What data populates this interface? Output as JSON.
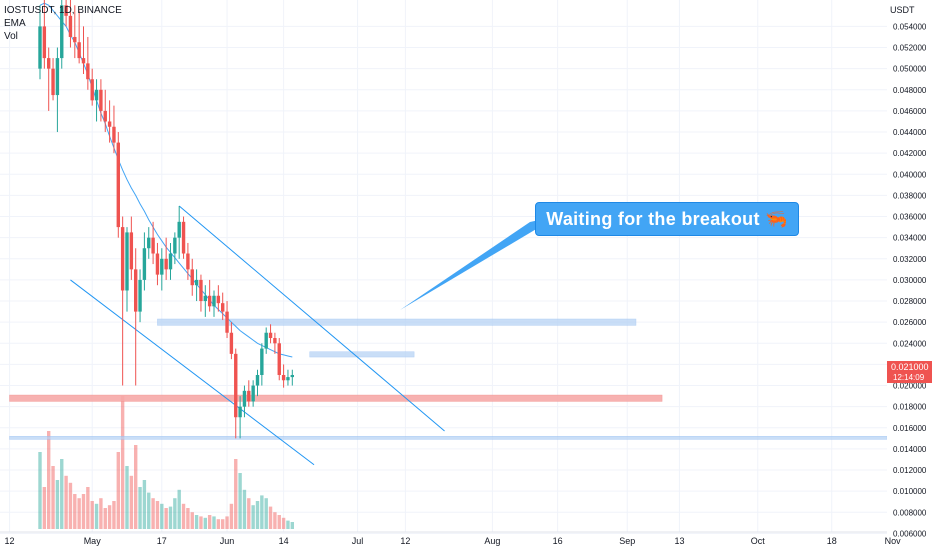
{
  "header": {
    "symbol_line": "IOSTUSDT, 1D, BINANCE",
    "ema_label": "EMA",
    "vol_label": "Vol"
  },
  "axis": {
    "currency": "USDT",
    "last_price": "0.021000",
    "countdown": "12:14:09"
  },
  "callout": {
    "text": "Waiting for the breakout",
    "emoji": "🦐"
  },
  "colors": {
    "up": "#26a69a",
    "down": "#ef5350",
    "ema": "#42a5f5",
    "trendline": "#2196f3",
    "support_zone": "#f7a9a8",
    "resistance_zone": "#b3d1f5",
    "price_badge": "#ef5350"
  },
  "chart_data": {
    "type": "candlestick",
    "title": "IOSTUSDT, 1D, BINANCE",
    "ylabel": "USDT",
    "ylim": [
      0.005,
      0.0565
    ],
    "price_ticks": [
      0.054,
      0.052,
      0.05,
      0.048,
      0.046,
      0.044,
      0.042,
      0.04,
      0.038,
      0.036,
      0.034,
      0.032,
      0.03,
      0.028,
      0.026,
      0.024,
      0.022,
      0.02,
      0.018,
      0.016,
      0.014,
      0.012,
      0.01,
      0.008,
      0.006
    ],
    "date_ticks": [
      {
        "label": "12",
        "day": -7
      },
      {
        "label": "May",
        "day": 12
      },
      {
        "label": "17",
        "day": 28
      },
      {
        "label": "Jun",
        "day": 43
      },
      {
        "label": "14",
        "day": 56
      },
      {
        "label": "Jul",
        "day": 73
      },
      {
        "label": "12",
        "day": 84
      },
      {
        "label": "Aug",
        "day": 104
      },
      {
        "label": "16",
        "day": 119
      },
      {
        "label": "Sep",
        "day": 135
      },
      {
        "label": "13",
        "day": 147
      },
      {
        "label": "Oct",
        "day": 165
      },
      {
        "label": "18",
        "day": 182
      },
      {
        "label": "Nov",
        "day": 196
      }
    ],
    "candles": [
      [
        0.05,
        0.056,
        0.049,
        0.054
      ],
      [
        0.054,
        0.0565,
        0.05,
        0.051
      ],
      [
        0.051,
        0.052,
        0.046,
        0.05
      ],
      [
        0.05,
        0.051,
        0.047,
        0.0475
      ],
      [
        0.0475,
        0.052,
        0.044,
        0.051
      ],
      [
        0.051,
        0.0565,
        0.05,
        0.056
      ],
      [
        0.056,
        0.0565,
        0.054,
        0.055
      ],
      [
        0.055,
        0.0565,
        0.052,
        0.053
      ],
      [
        0.053,
        0.056,
        0.051,
        0.0525
      ],
      [
        0.0525,
        0.0555,
        0.0505,
        0.051
      ],
      [
        0.051,
        0.054,
        0.0495,
        0.0505
      ],
      [
        0.0505,
        0.053,
        0.048,
        0.049
      ],
      [
        0.049,
        0.05,
        0.0465,
        0.047
      ],
      [
        0.047,
        0.049,
        0.045,
        0.048
      ],
      [
        0.048,
        0.049,
        0.045,
        0.046
      ],
      [
        0.046,
        0.048,
        0.044,
        0.045
      ],
      [
        0.045,
        0.047,
        0.043,
        0.0445
      ],
      [
        0.0445,
        0.0465,
        0.042,
        0.043
      ],
      [
        0.043,
        0.044,
        0.034,
        0.035
      ],
      [
        0.035,
        0.036,
        0.02,
        0.029
      ],
      [
        0.029,
        0.035,
        0.027,
        0.0345
      ],
      [
        0.0345,
        0.036,
        0.03,
        0.031
      ],
      [
        0.031,
        0.033,
        0.02,
        0.027
      ],
      [
        0.027,
        0.031,
        0.026,
        0.03
      ],
      [
        0.03,
        0.0345,
        0.029,
        0.033
      ],
      [
        0.033,
        0.035,
        0.032,
        0.034
      ],
      [
        0.034,
        0.0355,
        0.0315,
        0.0325
      ],
      [
        0.0325,
        0.0335,
        0.0295,
        0.0305
      ],
      [
        0.0305,
        0.033,
        0.029,
        0.032
      ],
      [
        0.032,
        0.034,
        0.03,
        0.031
      ],
      [
        0.031,
        0.0335,
        0.03,
        0.0325
      ],
      [
        0.0325,
        0.0345,
        0.0315,
        0.034
      ],
      [
        0.034,
        0.037,
        0.032,
        0.0355
      ],
      [
        0.0355,
        0.036,
        0.032,
        0.0325
      ],
      [
        0.0325,
        0.0335,
        0.03,
        0.031
      ],
      [
        0.031,
        0.032,
        0.0285,
        0.0295
      ],
      [
        0.0295,
        0.031,
        0.028,
        0.03
      ],
      [
        0.03,
        0.0305,
        0.027,
        0.028
      ],
      [
        0.028,
        0.0295,
        0.0265,
        0.0285
      ],
      [
        0.0285,
        0.03,
        0.027,
        0.0275
      ],
      [
        0.0275,
        0.029,
        0.0265,
        0.0285
      ],
      [
        0.0285,
        0.0295,
        0.027,
        0.0278
      ],
      [
        0.0278,
        0.0288,
        0.0262,
        0.027
      ],
      [
        0.027,
        0.028,
        0.0245,
        0.025
      ],
      [
        0.025,
        0.026,
        0.0225,
        0.023
      ],
      [
        0.023,
        0.0235,
        0.015,
        0.017
      ],
      [
        0.017,
        0.019,
        0.015,
        0.018
      ],
      [
        0.018,
        0.02,
        0.017,
        0.0195
      ],
      [
        0.0195,
        0.0205,
        0.018,
        0.0185
      ],
      [
        0.0185,
        0.0205,
        0.018,
        0.02
      ],
      [
        0.02,
        0.0215,
        0.019,
        0.021
      ],
      [
        0.021,
        0.024,
        0.02,
        0.0235
      ],
      [
        0.0235,
        0.0255,
        0.023,
        0.025
      ],
      [
        0.025,
        0.0258,
        0.024,
        0.0245
      ],
      [
        0.0245,
        0.025,
        0.023,
        0.024
      ],
      [
        0.024,
        0.0245,
        0.0205,
        0.021
      ],
      [
        0.021,
        0.022,
        0.0198,
        0.0205
      ],
      [
        0.0205,
        0.0215,
        0.02,
        0.0208
      ],
      [
        0.0208,
        0.0215,
        0.02,
        0.021
      ]
    ],
    "volumes": [
      0.55,
      0.3,
      0.7,
      0.45,
      0.35,
      0.5,
      0.38,
      0.33,
      0.25,
      0.22,
      0.25,
      0.3,
      0.2,
      0.18,
      0.22,
      0.15,
      0.17,
      0.2,
      0.55,
      0.95,
      0.45,
      0.38,
      0.6,
      0.3,
      0.35,
      0.26,
      0.22,
      0.2,
      0.18,
      0.15,
      0.16,
      0.22,
      0.28,
      0.18,
      0.15,
      0.12,
      0.1,
      0.09,
      0.08,
      0.1,
      0.09,
      0.07,
      0.07,
      0.09,
      0.18,
      0.5,
      0.4,
      0.28,
      0.22,
      0.17,
      0.2,
      0.24,
      0.22,
      0.16,
      0.12,
      0.1,
      0.08,
      0.06,
      0.05
    ],
    "ema": [
      0.056,
      0.0562,
      0.056,
      0.0555,
      0.055,
      0.0545,
      0.054,
      0.0532,
      0.0525,
      0.0515,
      0.0505,
      0.0495,
      0.0482,
      0.047,
      0.0458,
      0.0448,
      0.0436,
      0.0425,
      0.0414,
      0.0404,
      0.0395,
      0.0387,
      0.038,
      0.0372,
      0.0365,
      0.0357,
      0.035,
      0.0343,
      0.0337,
      0.0331,
      0.0326,
      0.0321,
      0.0316,
      0.0311,
      0.0306,
      0.0301,
      0.0296,
      0.0291,
      0.0286,
      0.0281,
      0.0276,
      0.0272,
      0.0268,
      0.0264,
      0.026,
      0.0256,
      0.0252,
      0.0249,
      0.0246,
      0.0243,
      0.024,
      0.0238,
      0.0236,
      0.0234,
      0.0232,
      0.023,
      0.0229,
      0.0228,
      0.0227
    ],
    "first_candle_day": 0,
    "trendlines": [
      {
        "name": "upper-channel",
        "from": [
          32,
          0.037
        ],
        "to": [
          93,
          0.0157
        ]
      },
      {
        "name": "lower-channel",
        "from": [
          7,
          0.03
        ],
        "to": [
          63,
          0.0125
        ]
      }
    ],
    "zones": [
      {
        "name": "resistance-zone-upper",
        "from_day": 27,
        "to_day": 137,
        "low": 0.0257,
        "high": 0.0263
      },
      {
        "name": "resistance-zone-lower",
        "from_day": 62,
        "to_day": 86,
        "low": 0.0227,
        "high": 0.0232
      },
      {
        "name": "support-zone",
        "from_day": -7,
        "to_day": 143,
        "low": 0.0185,
        "high": 0.0191
      },
      {
        "name": "support-line-low",
        "from_day": -7,
        "to_day": 218,
        "low": 0.0149,
        "high": 0.0152
      }
    ]
  }
}
